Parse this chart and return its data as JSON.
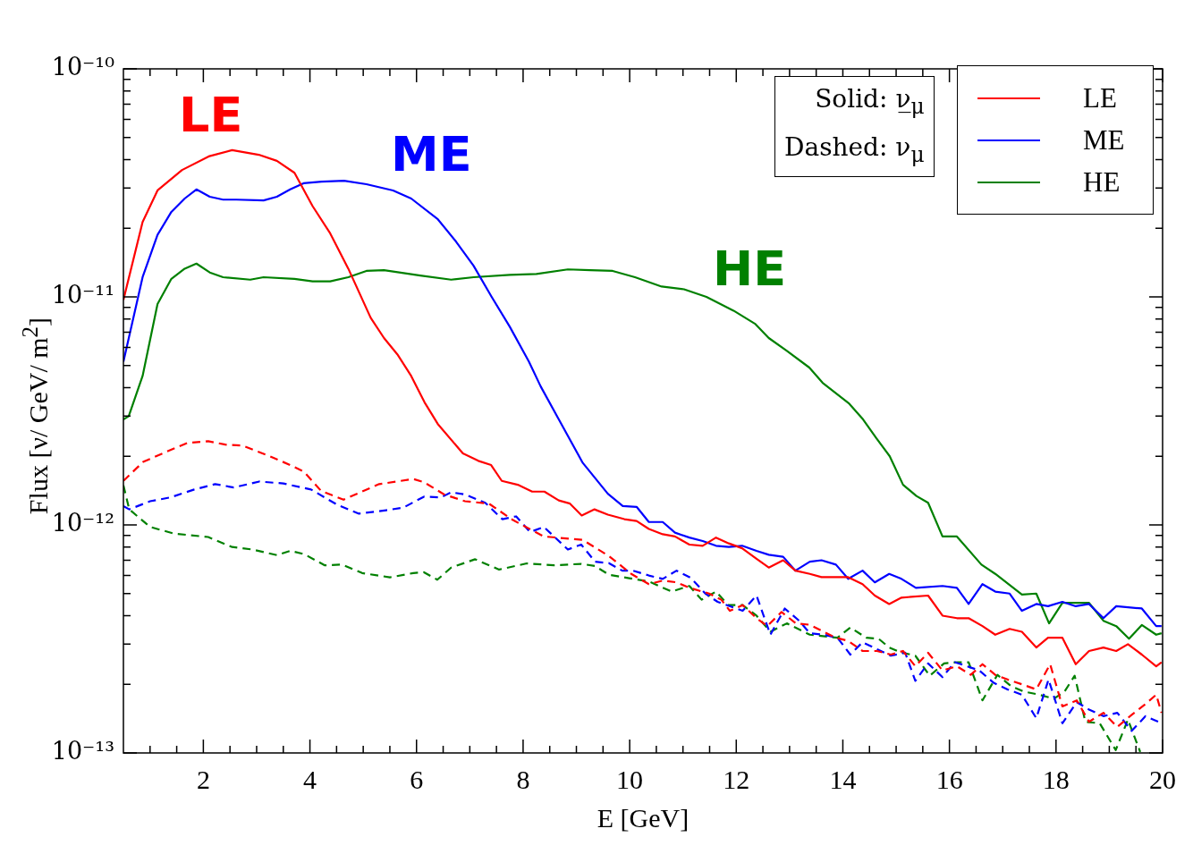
{
  "chart_data": {
    "type": "line",
    "xlabel": "E [GeV]",
    "ylabel": "Flux [ν/ GeV/ m$^{2}$]",
    "log": "y",
    "grid": false,
    "legend": "top right",
    "marker": "none",
    "xlim": [
      0.5,
      20
    ],
    "xticks": [
      {
        "value": 1,
        "label": null
      },
      {
        "value": 1.5,
        "label": null
      },
      2,
      {
        "value": 2.5,
        "label": null
      },
      {
        "value": 3,
        "label": null
      },
      {
        "value": 3.5,
        "label": null
      },
      4,
      {
        "value": 4.5,
        "label": null
      },
      {
        "value": 5,
        "label": null
      },
      {
        "value": 5.5,
        "label": null
      },
      6,
      {
        "value": 6.5,
        "label": null
      },
      {
        "value": 7,
        "label": null
      },
      {
        "value": 7.5,
        "label": null
      },
      8,
      {
        "value": 8.5,
        "label": null
      },
      {
        "value": 9,
        "label": null
      },
      {
        "value": 9.5,
        "label": null
      },
      10,
      {
        "value": 10.5,
        "label": null
      },
      {
        "value": 11,
        "label": null
      },
      {
        "value": 11.5,
        "label": null
      },
      12,
      {
        "value": 12.5,
        "label": null
      },
      {
        "value": 13,
        "label": null
      },
      {
        "value": 13.5,
        "label": null
      },
      14,
      {
        "value": 14.5,
        "label": null
      },
      {
        "value": 15,
        "label": null
      },
      {
        "value": 15.5,
        "label": null
      },
      16,
      {
        "value": 16.5,
        "label": null
      },
      {
        "value": 17,
        "label": null
      },
      {
        "value": 17.5,
        "label": null
      },
      18,
      {
        "value": 18.5,
        "label": null
      },
      {
        "value": 19,
        "label": null
      },
      {
        "value": 19.5,
        "label": null
      },
      20
    ],
    "ylim": [
      1e-13,
      1e-10
    ],
    "yticks": [
      {
        "value": 1e-13,
        "label": "10⁻¹³"
      },
      {
        "value": 2e-13,
        "label": null
      },
      {
        "value": 3e-13,
        "label": null
      },
      {
        "value": 4e-13,
        "label": null
      },
      {
        "value": 5e-13,
        "label": null
      },
      {
        "value": 6e-13,
        "label": null
      },
      {
        "value": 7e-13,
        "label": null
      },
      {
        "value": 8e-13,
        "label": null
      },
      {
        "value": 9e-13,
        "label": null
      },
      {
        "value": 1e-12,
        "label": "10⁻¹²"
      },
      {
        "value": 2e-12,
        "label": null
      },
      {
        "value": 3e-12,
        "label": null
      },
      {
        "value": 4e-12,
        "label": null
      },
      {
        "value": 5e-12,
        "label": null
      },
      {
        "value": 6e-12,
        "label": null
      },
      {
        "value": 7e-12,
        "label": null
      },
      {
        "value": 8e-12,
        "label": null
      },
      {
        "value": 9e-12,
        "label": null
      },
      {
        "value": 1e-11,
        "label": "10⁻¹¹"
      },
      {
        "value": 2e-11,
        "label": null
      },
      {
        "value": 3e-11,
        "label": null
      },
      {
        "value": 4e-11,
        "label": null
      },
      {
        "value": 5e-11,
        "label": null
      },
      {
        "value": 6e-11,
        "label": null
      },
      {
        "value": 7e-11,
        "label": null
      },
      {
        "value": 8e-11,
        "label": null
      },
      {
        "value": 9e-11,
        "label": null
      },
      {
        "value": 1e-10,
        "label": "10⁻¹⁰"
      }
    ],
    "annotations": [
      "LE",
      "ME",
      "HE",
      "Solid: ν̲$_{μ}$",
      "Dashed: ν$_{μ}$"
    ],
    "series": [
      {
        "name": "LE",
        "color": "#ff0000",
        "line_style": "solid",
        "x": [
          0.5,
          0.86,
          1.14,
          1.6,
          2.1,
          2.54,
          3.04,
          3.38,
          3.71,
          4.05,
          4.38,
          4.72,
          5.14,
          5.39,
          5.64,
          5.9,
          6.15,
          6.4,
          6.87,
          7.16,
          7.4,
          7.6,
          7.9,
          8.17,
          8.4,
          8.67,
          8.88,
          9.1,
          9.34,
          9.59,
          9.9,
          10.13,
          10.36,
          10.62,
          10.85,
          11.12,
          11.37,
          11.62,
          11.86,
          12.11,
          12.38,
          12.61,
          12.88,
          13.11,
          13.38,
          13.6,
          14.1,
          14.37,
          14.6,
          14.87,
          15.1,
          15.6,
          15.87,
          16.14,
          16.36,
          16.62,
          16.86,
          17.13,
          17.36,
          17.63,
          17.85,
          18.12,
          18.37,
          18.62,
          18.89,
          19.13,
          19.35,
          19.61,
          19.88,
          19.98
        ],
        "values": [
          9.7e-12,
          2.13e-11,
          2.93e-11,
          3.6e-11,
          4.13e-11,
          4.4e-11,
          4.2e-11,
          3.95e-11,
          3.5e-11,
          2.5e-11,
          1.9e-11,
          1.33e-11,
          8.1e-12,
          6.6e-12,
          5.6e-12,
          4.5e-12,
          3.45e-12,
          2.77e-12,
          2.06e-12,
          1.91e-12,
          1.83e-12,
          1.56e-12,
          1.5e-12,
          1.4e-12,
          1.4e-12,
          1.28e-12,
          1.24e-12,
          1.1e-12,
          1.17e-12,
          1.11e-12,
          1.06e-12,
          1.04e-12,
          9.6e-13,
          9.1e-13,
          8.9e-13,
          8.2e-13,
          8.1e-13,
          8.8e-13,
          8.3e-13,
          7.9e-13,
          7.1e-13,
          6.5e-13,
          7e-13,
          6.3e-13,
          6.1e-13,
          5.9e-13,
          5.9e-13,
          5.5e-13,
          4.9e-13,
          4.5e-13,
          4.8e-13,
          4.9e-13,
          4e-13,
          3.9e-13,
          3.9e-13,
          3.6e-13,
          3.3e-13,
          3.5e-13,
          3.4e-13,
          2.9e-13,
          3.2e-13,
          3.2e-13,
          2.45e-13,
          2.8e-13,
          2.9e-13,
          2.8e-13,
          3e-13,
          2.7e-13,
          2.4e-13,
          2.5e-13
        ]
      },
      {
        "name": "ME",
        "color": "#0000ff",
        "line_style": "solid",
        "x": [
          0.5,
          0.86,
          1.14,
          1.4,
          1.65,
          1.87,
          2.12,
          2.37,
          2.62,
          3.13,
          3.38,
          3.63,
          3.88,
          4.22,
          4.64,
          5.06,
          5.56,
          5.9,
          6.4,
          6.74,
          7.07,
          7.41,
          7.75,
          8.11,
          8.33,
          8.67,
          9.12,
          9.59,
          9.87,
          10.13,
          10.36,
          10.62,
          10.85,
          11.12,
          11.37,
          11.62,
          11.86,
          12.11,
          12.38,
          12.61,
          12.88,
          13.11,
          13.38,
          13.6,
          13.87,
          14.1,
          14.37,
          14.6,
          14.87,
          15.1,
          15.37,
          15.87,
          16.14,
          16.36,
          16.62,
          16.86,
          17.13,
          17.36,
          17.63,
          17.85,
          18.12,
          18.37,
          18.62,
          18.89,
          19.13,
          19.61,
          19.88,
          19.98
        ],
        "values": [
          5.2e-12,
          1.22e-11,
          1.87e-11,
          2.36e-11,
          2.7e-11,
          2.96e-11,
          2.75e-11,
          2.67e-11,
          2.67e-11,
          2.65e-11,
          2.75e-11,
          2.96e-11,
          3.15e-11,
          3.2e-11,
          3.23e-11,
          3.12e-11,
          2.93e-11,
          2.7e-11,
          2.19e-11,
          1.75e-11,
          1.37e-11,
          1e-11,
          7.4e-12,
          5.2e-12,
          4.05e-12,
          2.9e-12,
          1.87e-12,
          1.37e-12,
          1.21e-12,
          1.2e-12,
          1.03e-12,
          1.03e-12,
          9.25e-13,
          8.8e-13,
          8.5e-13,
          8.1e-13,
          8e-13,
          8.1e-13,
          7.7e-13,
          7.4e-13,
          7.25e-13,
          6.3e-13,
          6.9e-13,
          7e-13,
          6.7e-13,
          5.8e-13,
          6.3e-13,
          5.6e-13,
          6.1e-13,
          5.8e-13,
          5.3e-13,
          5.4e-13,
          5.3e-13,
          4.5e-13,
          5.5e-13,
          5.1e-13,
          5e-13,
          4.2e-13,
          4.5e-13,
          4.4e-13,
          4.6e-13,
          4.4e-13,
          4.5e-13,
          3.9e-13,
          4.4e-13,
          4.3e-13,
          3.6e-13,
          3.6e-13
        ]
      },
      {
        "name": "HE",
        "color": "#008000",
        "line_style": "solid",
        "x": [
          0.5,
          0.6,
          0.86,
          1.14,
          1.4,
          1.65,
          1.87,
          2.12,
          2.37,
          2.88,
          3.13,
          3.71,
          4.05,
          4.38,
          4.72,
          5.06,
          5.39,
          6.07,
          6.65,
          7.07,
          7.75,
          8.25,
          8.84,
          9.26,
          9.68,
          10.1,
          10.6,
          11.02,
          11.44,
          11.95,
          12.36,
          12.61,
          12.95,
          13.37,
          13.62,
          14.12,
          14.38,
          14.63,
          14.88,
          15.13,
          15.38,
          15.6,
          15.87,
          16.14,
          16.6,
          16.86,
          17.36,
          17.63,
          17.87,
          18.12,
          18.62,
          18.89,
          19.13,
          19.37,
          19.61,
          19.88,
          19.98
        ],
        "values": [
          2.9e-12,
          3e-12,
          4.5e-12,
          9.3e-12,
          1.2e-11,
          1.33e-11,
          1.4e-11,
          1.28e-11,
          1.22e-11,
          1.19e-11,
          1.22e-11,
          1.2e-11,
          1.17e-11,
          1.17e-11,
          1.22e-11,
          1.3e-11,
          1.31e-11,
          1.24e-11,
          1.19e-11,
          1.22e-11,
          1.25e-11,
          1.26e-11,
          1.32e-11,
          1.31e-11,
          1.3e-11,
          1.22e-11,
          1.11e-11,
          1.08e-11,
          1e-11,
          8.7e-12,
          7.6e-12,
          6.6e-12,
          5.8e-12,
          4.9e-12,
          4.2e-12,
          3.4e-12,
          2.9e-12,
          2.4e-12,
          2e-12,
          1.5e-12,
          1.34e-12,
          1.25e-12,
          8.9e-13,
          8.9e-13,
          6.7e-13,
          6.1e-13,
          4.95e-13,
          5e-13,
          3.7e-13,
          4.55e-13,
          4.55e-13,
          3.8e-13,
          3.6e-13,
          3.17e-13,
          3.64e-13,
          3.3e-13,
          3.35e-13
        ]
      },
      {
        "color": "#ff0000",
        "line_style": "dashed",
        "x": [
          0.5,
          0.87,
          1.32,
          1.7,
          2.09,
          2.41,
          2.73,
          3.25,
          3.63,
          3.89,
          4.21,
          4.63,
          5.3,
          5.94,
          6.14,
          6.52,
          6.91,
          7.36,
          7.81,
          8.39,
          9.12,
          9.61,
          10.03,
          10.36,
          10.62,
          10.88,
          11.12,
          11.49,
          11.72,
          11.88,
          12.12,
          12.38,
          12.58,
          12.85,
          13.12,
          13.38,
          13.64,
          13.87,
          14.1,
          14.37,
          14.64,
          14.9,
          15.13,
          15.36,
          15.6,
          15.87,
          16.14,
          16.4,
          16.62,
          16.86,
          17.09,
          17.36,
          17.63,
          17.89,
          18.12,
          18.39,
          18.62,
          18.89,
          19.15,
          19.42,
          19.68,
          19.88,
          19.98
        ],
        "values": [
          1.56e-12,
          1.89e-12,
          2.1e-12,
          2.29e-12,
          2.33e-12,
          2.25e-12,
          2.23e-12,
          2e-12,
          1.83e-12,
          1.71e-12,
          1.41e-12,
          1.29e-12,
          1.51e-12,
          1.59e-12,
          1.54e-12,
          1.36e-12,
          1.27e-12,
          1.24e-12,
          1.05e-12,
          8.9e-13,
          8.6e-13,
          7.3e-13,
          6.1e-13,
          5.5e-13,
          5.7e-13,
          5.6e-13,
          5.3e-13,
          5e-13,
          4.7e-13,
          4.2e-13,
          4.45e-13,
          3.9e-13,
          3.6e-13,
          4.15e-13,
          3.7e-13,
          3.65e-13,
          3.4e-13,
          3.2e-13,
          3.1e-13,
          2.8e-13,
          2.8e-13,
          2.7e-13,
          2.8e-13,
          2.4e-13,
          2.75e-13,
          2.3e-13,
          2.4e-13,
          2.2e-13,
          2.45e-13,
          2.2e-13,
          2.1e-13,
          2e-13,
          1.9e-13,
          2.45e-13,
          1.6e-13,
          1.7e-13,
          1.37e-13,
          1.5e-13,
          1.3e-13,
          1.47e-13,
          1.64e-13,
          1.8e-13,
          1.5e-13
        ]
      },
      {
        "color": "#0000ff",
        "line_style": "dashed",
        "x": [
          0.5,
          0.61,
          1.0,
          1.38,
          1.83,
          2.22,
          2.57,
          3.05,
          3.5,
          4.02,
          4.53,
          4.92,
          5.43,
          5.75,
          6.14,
          6.46,
          6.65,
          6.91,
          7.29,
          7.61,
          7.87,
          8.13,
          8.39,
          8.84,
          9.09,
          9.35,
          9.61,
          9.86,
          10.06,
          10.36,
          10.62,
          10.88,
          11.15,
          11.42,
          11.65,
          12.12,
          12.38,
          12.64,
          12.91,
          13.18,
          13.38,
          13.64,
          13.9,
          14.14,
          14.37,
          14.64,
          14.9,
          15.17,
          15.36,
          15.6,
          15.87,
          16.1,
          16.33,
          16.56,
          16.83,
          17.09,
          17.36,
          17.63,
          17.86,
          18.12,
          18.39,
          18.62,
          18.89,
          19.15,
          19.42,
          19.68,
          19.98
        ],
        "values": [
          1.21e-12,
          1.17e-12,
          1.27e-12,
          1.32e-12,
          1.43e-12,
          1.51e-12,
          1.46e-12,
          1.55e-12,
          1.52e-12,
          1.43e-12,
          1.22e-12,
          1.12e-12,
          1.16e-12,
          1.19e-12,
          1.33e-12,
          1.32e-12,
          1.39e-12,
          1.36e-12,
          1.25e-12,
          1.06e-12,
          1.09e-12,
          9.3e-13,
          9.8e-13,
          7.8e-13,
          8.2e-13,
          6.9e-13,
          6.8e-13,
          6.3e-13,
          6.3e-13,
          6e-13,
          5.8e-13,
          6.3e-13,
          5.85e-13,
          5e-13,
          4.6e-13,
          4.2e-13,
          4.9e-13,
          3.3e-13,
          4.3e-13,
          3.8e-13,
          3.35e-13,
          3.3e-13,
          3.2e-13,
          2.7e-13,
          3.06e-13,
          2.85e-13,
          2.67e-13,
          2.75e-13,
          2.07e-13,
          2.47e-13,
          2.15e-13,
          2.5e-13,
          2.4e-13,
          2.3e-13,
          2.03e-13,
          1.9e-13,
          1.8e-13,
          1.42e-13,
          2.1e-13,
          1.35e-13,
          1.67e-13,
          1.55e-13,
          1.45e-13,
          1.5e-13,
          1.25e-13,
          1.45e-13,
          1.35e-13
        ]
      },
      {
        "color": "#008000",
        "line_style": "dashed",
        "x": [
          0.5,
          0.61,
          1.0,
          1.45,
          2.09,
          2.54,
          2.92,
          3.38,
          3.63,
          3.89,
          4.28,
          4.6,
          4.98,
          5.5,
          5.94,
          6.14,
          6.39,
          6.65,
          7.1,
          7.55,
          8.07,
          8.58,
          9.09,
          9.35,
          9.61,
          9.99,
          10.36,
          10.79,
          11.12,
          11.35,
          11.62,
          11.85,
          12.12,
          12.38,
          12.64,
          12.95,
          13.38,
          13.9,
          14.14,
          14.44,
          14.67,
          14.87,
          15.07,
          15.36,
          15.63,
          15.9,
          16.16,
          16.36,
          16.62,
          16.9,
          17.16,
          17.39,
          17.69,
          17.96,
          18.16,
          18.35,
          18.55,
          18.82,
          19.12,
          19.35,
          19.58
        ],
        "values": [
          1.49e-12,
          1.17e-12,
          9.8e-13,
          9.16e-13,
          8.85e-13,
          8e-13,
          7.8e-13,
          7.37e-13,
          7.7e-13,
          7.45e-13,
          6.65e-13,
          6.7e-13,
          6.15e-13,
          5.89e-13,
          6.15e-13,
          6.2e-13,
          5.75e-13,
          6.5e-13,
          7.07e-13,
          6.37e-13,
          6.78e-13,
          6.65e-13,
          6.75e-13,
          6.6e-13,
          6.05e-13,
          5.84e-13,
          5.65e-13,
          5.1e-13,
          5.4e-13,
          4.7e-13,
          5.1e-13,
          4.45e-13,
          4.45e-13,
          4e-13,
          3.4e-13,
          3.7e-13,
          3.3e-13,
          3.2e-13,
          3.55e-13,
          3.2e-13,
          3.17e-13,
          2.9e-13,
          2.77e-13,
          2.67e-13,
          2.18e-13,
          2.47e-13,
          2.5e-13,
          2.5e-13,
          1.7e-13,
          2.2e-13,
          1.96e-13,
          1.86e-13,
          1.8e-13,
          1.73e-13,
          1.86e-13,
          2.18e-13,
          1.37e-13,
          1.35e-13,
          1.03e-13,
          1.4e-13,
          1.01e-13
        ]
      }
    ]
  }
}
